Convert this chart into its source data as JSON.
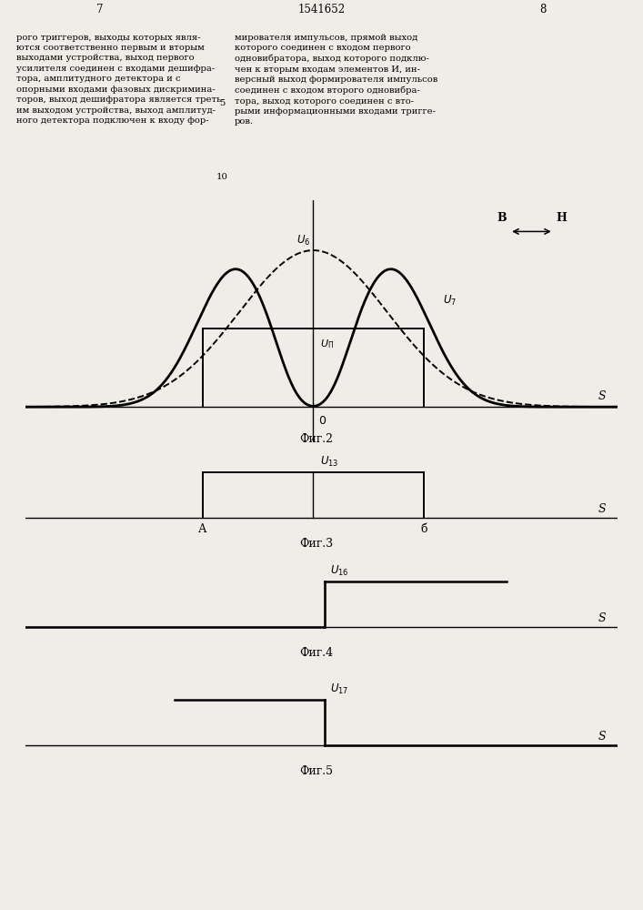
{
  "bg_color": "#f0ede8",
  "text_color": "#000000",
  "page_numbers": [
    "7",
    "8"
  ],
  "patent_number": "1541652",
  "fig2_label": "Фиг.2",
  "fig3_label": "Фиг.3",
  "fig4_label": "Фиг.4",
  "fig5_label": "Фиг.5",
  "label_B": "В",
  "label_H": "Н",
  "label_S": "S",
  "label_O": "0",
  "label_A": "А",
  "label_b": "б",
  "label_U6": "U_{6}",
  "label_U7": "U_{7}",
  "label_Un": "U_{\\Pi}",
  "label_U13": "U_{13}",
  "label_U16": "U_{16}",
  "label_U17": "U_{17}",
  "left_col_text": "рого триггеров, выходы которых явля-\nются соответственно первым и вторым\nвыходами устройства, выход первого\nусилителя соединен с входами дешифра-\nтора, амплитудного детектора и с\nопорными входами фазовых дискримина-\nторов, выход дешифратора является треть-\nим выходом устройства, выход амплитуд-\nного детектора подключен к входу фор-",
  "right_col_text": "мирователя импульсов, прямой выход\nкоторого соединен с входом первого\nодновибратора, выход которого подклю-\nчен к вторым входам элементов И, ин-\nверсный выход формирователя импульсов\nсоединен с входом второго одновибра-\nтора, выход которого соединен с вто-\nрыми информационными входами тригге-\nров."
}
